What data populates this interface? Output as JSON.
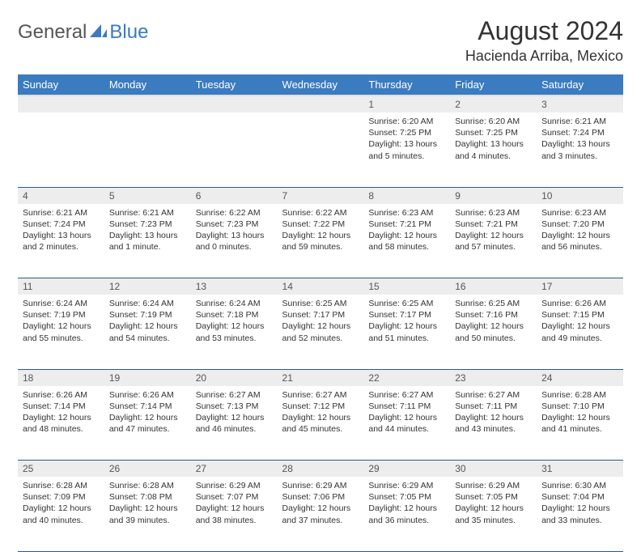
{
  "brand": {
    "text1": "General",
    "text2": "Blue",
    "color_general": "#555555",
    "color_blue": "#3b7bbf"
  },
  "title": "August 2024",
  "location": "Hacienda Arriba, Mexico",
  "weekday_headers": [
    "Sunday",
    "Monday",
    "Tuesday",
    "Wednesday",
    "Thursday",
    "Friday",
    "Saturday"
  ],
  "header_bg": "#3b7bbf",
  "header_fg": "#ffffff",
  "daynum_bg": "#ededed",
  "row_border_color": "#2d5a8a",
  "fontsize_title": 32,
  "fontsize_location": 18,
  "fontsize_header": 13,
  "fontsize_daynum": 12,
  "fontsize_body": 10.5,
  "weeks": [
    [
      null,
      null,
      null,
      null,
      {
        "n": "1",
        "sunrise": "6:20 AM",
        "sunset": "7:25 PM",
        "daylight": "13 hours and 5 minutes."
      },
      {
        "n": "2",
        "sunrise": "6:20 AM",
        "sunset": "7:25 PM",
        "daylight": "13 hours and 4 minutes."
      },
      {
        "n": "3",
        "sunrise": "6:21 AM",
        "sunset": "7:24 PM",
        "daylight": "13 hours and 3 minutes."
      }
    ],
    [
      {
        "n": "4",
        "sunrise": "6:21 AM",
        "sunset": "7:24 PM",
        "daylight": "13 hours and 2 minutes."
      },
      {
        "n": "5",
        "sunrise": "6:21 AM",
        "sunset": "7:23 PM",
        "daylight": "13 hours and 1 minute."
      },
      {
        "n": "6",
        "sunrise": "6:22 AM",
        "sunset": "7:23 PM",
        "daylight": "13 hours and 0 minutes."
      },
      {
        "n": "7",
        "sunrise": "6:22 AM",
        "sunset": "7:22 PM",
        "daylight": "12 hours and 59 minutes."
      },
      {
        "n": "8",
        "sunrise": "6:23 AM",
        "sunset": "7:21 PM",
        "daylight": "12 hours and 58 minutes."
      },
      {
        "n": "9",
        "sunrise": "6:23 AM",
        "sunset": "7:21 PM",
        "daylight": "12 hours and 57 minutes."
      },
      {
        "n": "10",
        "sunrise": "6:23 AM",
        "sunset": "7:20 PM",
        "daylight": "12 hours and 56 minutes."
      }
    ],
    [
      {
        "n": "11",
        "sunrise": "6:24 AM",
        "sunset": "7:19 PM",
        "daylight": "12 hours and 55 minutes."
      },
      {
        "n": "12",
        "sunrise": "6:24 AM",
        "sunset": "7:19 PM",
        "daylight": "12 hours and 54 minutes."
      },
      {
        "n": "13",
        "sunrise": "6:24 AM",
        "sunset": "7:18 PM",
        "daylight": "12 hours and 53 minutes."
      },
      {
        "n": "14",
        "sunrise": "6:25 AM",
        "sunset": "7:17 PM",
        "daylight": "12 hours and 52 minutes."
      },
      {
        "n": "15",
        "sunrise": "6:25 AM",
        "sunset": "7:17 PM",
        "daylight": "12 hours and 51 minutes."
      },
      {
        "n": "16",
        "sunrise": "6:25 AM",
        "sunset": "7:16 PM",
        "daylight": "12 hours and 50 minutes."
      },
      {
        "n": "17",
        "sunrise": "6:26 AM",
        "sunset": "7:15 PM",
        "daylight": "12 hours and 49 minutes."
      }
    ],
    [
      {
        "n": "18",
        "sunrise": "6:26 AM",
        "sunset": "7:14 PM",
        "daylight": "12 hours and 48 minutes."
      },
      {
        "n": "19",
        "sunrise": "6:26 AM",
        "sunset": "7:14 PM",
        "daylight": "12 hours and 47 minutes."
      },
      {
        "n": "20",
        "sunrise": "6:27 AM",
        "sunset": "7:13 PM",
        "daylight": "12 hours and 46 minutes."
      },
      {
        "n": "21",
        "sunrise": "6:27 AM",
        "sunset": "7:12 PM",
        "daylight": "12 hours and 45 minutes."
      },
      {
        "n": "22",
        "sunrise": "6:27 AM",
        "sunset": "7:11 PM",
        "daylight": "12 hours and 44 minutes."
      },
      {
        "n": "23",
        "sunrise": "6:27 AM",
        "sunset": "7:11 PM",
        "daylight": "12 hours and 43 minutes."
      },
      {
        "n": "24",
        "sunrise": "6:28 AM",
        "sunset": "7:10 PM",
        "daylight": "12 hours and 41 minutes."
      }
    ],
    [
      {
        "n": "25",
        "sunrise": "6:28 AM",
        "sunset": "7:09 PM",
        "daylight": "12 hours and 40 minutes."
      },
      {
        "n": "26",
        "sunrise": "6:28 AM",
        "sunset": "7:08 PM",
        "daylight": "12 hours and 39 minutes."
      },
      {
        "n": "27",
        "sunrise": "6:29 AM",
        "sunset": "7:07 PM",
        "daylight": "12 hours and 38 minutes."
      },
      {
        "n": "28",
        "sunrise": "6:29 AM",
        "sunset": "7:06 PM",
        "daylight": "12 hours and 37 minutes."
      },
      {
        "n": "29",
        "sunrise": "6:29 AM",
        "sunset": "7:05 PM",
        "daylight": "12 hours and 36 minutes."
      },
      {
        "n": "30",
        "sunrise": "6:29 AM",
        "sunset": "7:05 PM",
        "daylight": "12 hours and 35 minutes."
      },
      {
        "n": "31",
        "sunrise": "6:30 AM",
        "sunset": "7:04 PM",
        "daylight": "12 hours and 33 minutes."
      }
    ]
  ],
  "labels": {
    "sunrise": "Sunrise:",
    "sunset": "Sunset:",
    "daylight": "Daylight:"
  }
}
